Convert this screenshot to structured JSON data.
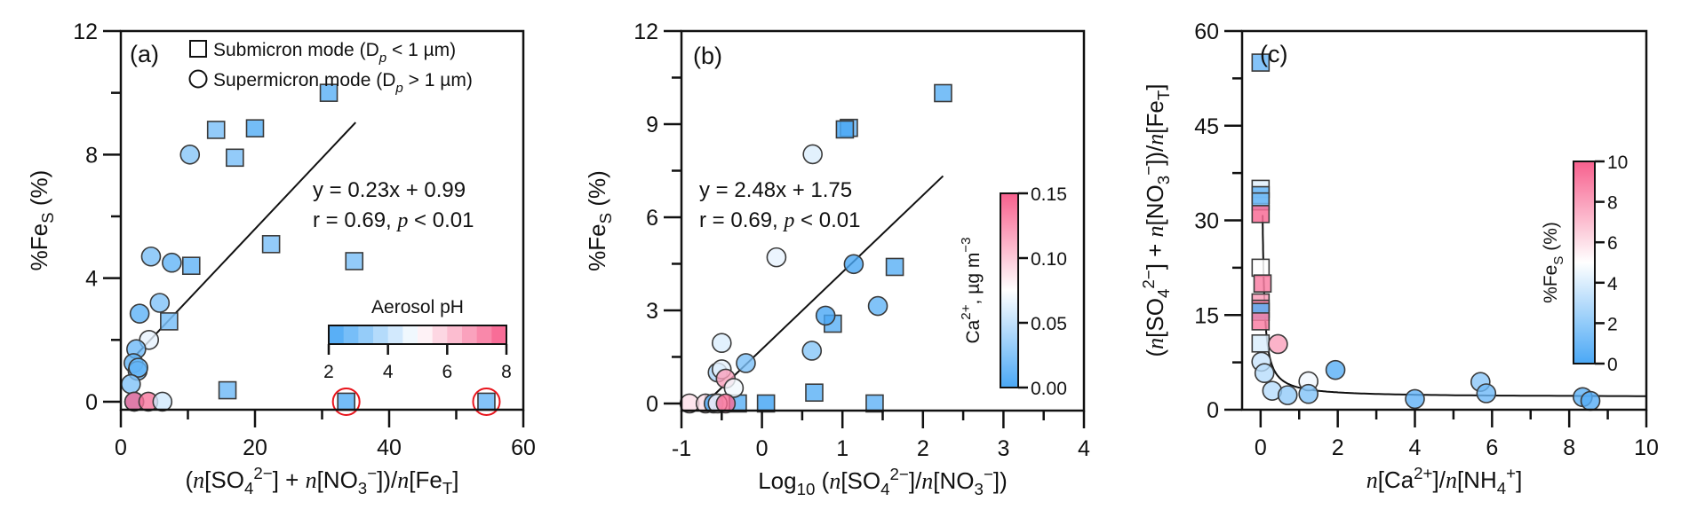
{
  "colors": {
    "low": "#4aa8f5",
    "mid": "#ffffff",
    "high": "#f7608d",
    "highlight": "#e8141c"
  },
  "chart_data": [
    {
      "panel": "(a)",
      "type": "scatter",
      "xlim": [
        0,
        60
      ],
      "ylim": [
        -0.26,
        12
      ],
      "xticks": [
        0,
        20,
        40,
        60
      ],
      "xminor": 10,
      "yticks": [
        0,
        4,
        8,
        12
      ],
      "yminor": 2,
      "xlabel": [
        [
          "(",
          ""
        ],
        [
          "n",
          "i"
        ],
        [
          "[SO",
          ""
        ],
        [
          "4",
          "sub"
        ],
        [
          "2−",
          "sup"
        ],
        [
          "] + ",
          ""
        ],
        [
          "n",
          "i"
        ],
        [
          "[NO",
          ""
        ],
        [
          "3",
          "sub"
        ],
        [
          "−",
          "sup"
        ],
        [
          "])/",
          ""
        ],
        [
          "n",
          "i"
        ],
        [
          "[Fe",
          ""
        ],
        [
          "T",
          "sub"
        ],
        [
          "]",
          ""
        ]
      ],
      "ylabel": [
        [
          "%Fe",
          ""
        ],
        [
          "S",
          "sub"
        ],
        [
          " (%)",
          ""
        ]
      ],
      "legend": [
        {
          "marker": "square",
          "label": [
            [
              "Submicron mode (D",
              ""
            ],
            [
              "p",
              "subi"
            ],
            [
              " < 1 µm)",
              ""
            ]
          ]
        },
        {
          "marker": "circle",
          "label": [
            [
              "Supermicron mode (D",
              ""
            ],
            [
              "p",
              "subi"
            ],
            [
              " > 1 µm)",
              ""
            ]
          ]
        }
      ],
      "fit": {
        "slope": 0.23,
        "intercept": 0.99,
        "xrange": [
          2,
          35
        ]
      },
      "annotations": [
        [
          [
            "y = 0.23x + 0.99",
            ""
          ]
        ],
        [
          [
            "r = 0.69, ",
            ""
          ],
          [
            "p",
            "i"
          ],
          [
            " < 0.01",
            ""
          ]
        ]
      ],
      "colorbar": {
        "title": "Aerosol pH",
        "range": [
          2,
          8
        ],
        "ticks": [
          "2",
          "4",
          "6",
          "8"
        ],
        "tickvals": [
          2,
          4,
          6,
          8
        ],
        "steps": 12,
        "orientation": "horizontal"
      },
      "points": [
        {
          "x": 31,
          "y": 10.0,
          "shape": "square",
          "c": 2.4
        },
        {
          "x": 14.2,
          "y": 8.8,
          "shape": "square",
          "c": 2.9
        },
        {
          "x": 20,
          "y": 8.85,
          "shape": "square",
          "c": 2.3
        },
        {
          "x": 17,
          "y": 7.9,
          "shape": "square",
          "c": 2.9
        },
        {
          "x": 10.3,
          "y": 8.0,
          "shape": "circle",
          "c": 3.0
        },
        {
          "x": 22.4,
          "y": 5.1,
          "shape": "square",
          "c": 2.9
        },
        {
          "x": 34.8,
          "y": 4.55,
          "shape": "square",
          "c": 2.9
        },
        {
          "x": 4.5,
          "y": 4.7,
          "shape": "circle",
          "c": 2.8
        },
        {
          "x": 7.6,
          "y": 4.5,
          "shape": "circle",
          "c": 2.4
        },
        {
          "x": 10.5,
          "y": 4.4,
          "shape": "square",
          "c": 2.5
        },
        {
          "x": 5.8,
          "y": 3.2,
          "shape": "circle",
          "c": 2.9
        },
        {
          "x": 2.8,
          "y": 2.85,
          "shape": "circle",
          "c": 2.3
        },
        {
          "x": 7.2,
          "y": 2.6,
          "shape": "square",
          "c": 2.8
        },
        {
          "x": 4.2,
          "y": 2.0,
          "shape": "circle",
          "c": 4.6
        },
        {
          "x": 2.3,
          "y": 1.7,
          "shape": "circle",
          "c": 2.6
        },
        {
          "x": 1.9,
          "y": 1.25,
          "shape": "circle",
          "c": 2.4
        },
        {
          "x": 2.5,
          "y": 1.0,
          "shape": "circle",
          "c": 2.5
        },
        {
          "x": 2.6,
          "y": 1.1,
          "shape": "circle",
          "c": 2.4
        },
        {
          "x": 1.5,
          "y": 0.57,
          "shape": "circle",
          "c": 2.9
        },
        {
          "x": 2.0,
          "y": 0,
          "shape": "circle",
          "c": 2.2
        },
        {
          "x": 2.0,
          "y": 0,
          "shape": "circle",
          "c": 7.8
        },
        {
          "x": 4.1,
          "y": 0,
          "shape": "circle",
          "c": 7.6
        },
        {
          "x": 6.2,
          "y": 0,
          "shape": "circle",
          "c": 4.2
        },
        {
          "x": 15.9,
          "y": 0.37,
          "shape": "square",
          "c": 2.7
        },
        {
          "x": 33.6,
          "y": 0,
          "shape": "square",
          "c": 2.3,
          "highlight": true
        },
        {
          "x": 54.5,
          "y": 0,
          "shape": "square",
          "c": 2.6,
          "highlight": true
        }
      ]
    },
    {
      "panel": "(b)",
      "type": "scatter",
      "xlim": [
        -1,
        4
      ],
      "ylim": [
        -0.23,
        12
      ],
      "xticks": [
        -1,
        0,
        1,
        2,
        3,
        4
      ],
      "xminor": 0.5,
      "yticks": [
        0,
        3,
        6,
        9,
        12
      ],
      "yminor": 1.5,
      "xlabel": [
        [
          "Log",
          ""
        ],
        [
          "10",
          "sub"
        ],
        [
          " (",
          ""
        ],
        [
          "n",
          "i"
        ],
        [
          "[SO",
          ""
        ],
        [
          "4",
          "sub"
        ],
        [
          "2−",
          "sup"
        ],
        [
          "]/",
          ""
        ],
        [
          "n",
          "i"
        ],
        [
          "[NO",
          ""
        ],
        [
          "3",
          "sub"
        ],
        [
          "−",
          "sup"
        ],
        [
          "])",
          ""
        ]
      ],
      "ylabel": [
        [
          "%Fe",
          ""
        ],
        [
          "S",
          "sub"
        ],
        [
          " (%)",
          ""
        ]
      ],
      "fit": {
        "slope": 2.48,
        "intercept": 1.75,
        "xrange": [
          -0.62,
          2.25
        ]
      },
      "annotations": [
        [
          [
            "y = 2.48x + 1.75",
            ""
          ]
        ],
        [
          [
            "r = 0.69, ",
            ""
          ],
          [
            "p",
            "i"
          ],
          [
            " < 0.01",
            ""
          ]
        ]
      ],
      "colorbar": {
        "title": [
          [
            "Ca",
            ""
          ],
          [
            "2+",
            "sup"
          ],
          [
            ", µg m",
            ""
          ],
          [
            "−3",
            "sup"
          ]
        ],
        "range": [
          0,
          0.15
        ],
        "ticks": [
          "0.00",
          "0.05",
          "0.10",
          "0.15"
        ],
        "tickvals": [
          0,
          0.05,
          0.1,
          0.15
        ],
        "orientation": "vertical"
      },
      "points": [
        {
          "x": 2.25,
          "y": 10.0,
          "shape": "square",
          "c": 0.01
        },
        {
          "x": 1.08,
          "y": 8.88,
          "shape": "square",
          "c": 0.015
        },
        {
          "x": 1.03,
          "y": 8.83,
          "shape": "square",
          "c": 0.0
        },
        {
          "x": 1.65,
          "y": 4.4,
          "shape": "square",
          "c": 0.01
        },
        {
          "x": 0.88,
          "y": 2.57,
          "shape": "square",
          "c": 0.01
        },
        {
          "x": 0.65,
          "y": 0.35,
          "shape": "square",
          "c": 0.01
        },
        {
          "x": 1.4,
          "y": 0,
          "shape": "square",
          "c": 0.012
        },
        {
          "x": 0.05,
          "y": 0,
          "shape": "square",
          "c": 0.0
        },
        {
          "x": -0.3,
          "y": 0,
          "shape": "square",
          "c": 0.01
        },
        {
          "x": -0.6,
          "y": 0,
          "shape": "square",
          "c": 0.0
        },
        {
          "x": 0.63,
          "y": 8.03,
          "shape": "circle",
          "c": 0.06
        },
        {
          "x": 0.18,
          "y": 4.71,
          "shape": "circle",
          "c": 0.065
        },
        {
          "x": 1.14,
          "y": 4.49,
          "shape": "circle",
          "c": 0.0
        },
        {
          "x": 1.44,
          "y": 3.14,
          "shape": "circle",
          "c": 0.01
        },
        {
          "x": 0.79,
          "y": 2.83,
          "shape": "circle",
          "c": 0.0
        },
        {
          "x": 0.62,
          "y": 1.7,
          "shape": "circle",
          "c": 0.025
        },
        {
          "x": -0.5,
          "y": 1.95,
          "shape": "circle",
          "c": 0.06
        },
        {
          "x": -0.2,
          "y": 1.3,
          "shape": "circle",
          "c": 0.02
        },
        {
          "x": -0.55,
          "y": 1.0,
          "shape": "circle",
          "c": 0.04
        },
        {
          "x": -0.5,
          "y": 1.1,
          "shape": "circle",
          "c": 0.065
        },
        {
          "x": -0.45,
          "y": 0.8,
          "shape": "circle",
          "c": 0.12
        },
        {
          "x": -0.35,
          "y": 0.5,
          "shape": "circle",
          "c": 0.07
        },
        {
          "x": -0.9,
          "y": 0,
          "shape": "circle",
          "c": 0.09
        },
        {
          "x": -0.7,
          "y": 0,
          "shape": "circle",
          "c": 0.09
        },
        {
          "x": -0.6,
          "y": 0,
          "shape": "circle",
          "c": 0.0
        },
        {
          "x": -0.55,
          "y": 0,
          "shape": "circle",
          "c": 0.08
        },
        {
          "x": -0.45,
          "y": 0,
          "shape": "circle",
          "c": 0.145
        }
      ]
    },
    {
      "panel": "(c)",
      "type": "scatter",
      "xlim": [
        -0.48,
        10
      ],
      "ylim": [
        0,
        60
      ],
      "xticks": [
        0,
        2,
        4,
        6,
        8,
        10
      ],
      "xminor": 1,
      "yticks": [
        0,
        15,
        30,
        45,
        60
      ],
      "yminor": 7.5,
      "xlabel": [
        [
          "n",
          "i"
        ],
        [
          "[Ca",
          ""
        ],
        [
          "2+",
          "sup"
        ],
        [
          "]/",
          ""
        ],
        [
          "n",
          "i"
        ],
        [
          "[NH",
          ""
        ],
        [
          "4",
          "sub"
        ],
        [
          "+",
          "sup"
        ],
        [
          "]",
          ""
        ]
      ],
      "ylabel": [
        [
          "(",
          ""
        ],
        [
          "n",
          "i"
        ],
        [
          "[SO",
          ""
        ],
        [
          "4",
          "sub"
        ],
        [
          "2−",
          "sup"
        ],
        [
          "] + ",
          ""
        ],
        [
          "n",
          "i"
        ],
        [
          "[NO",
          ""
        ],
        [
          "3",
          "sub"
        ],
        [
          "−",
          "sup"
        ],
        [
          "])/",
          ""
        ],
        [
          "n",
          "i"
        ],
        [
          "[Fe",
          ""
        ],
        [
          "T",
          "sub"
        ],
        [
          "]",
          ""
        ]
      ],
      "fit": {
        "form": "y = a + b/x",
        "a": 2.0,
        "b": 1.5,
        "xrange": [
          0.052,
          10
        ]
      },
      "colorbar": {
        "title": [
          [
            "%Fe",
            ""
          ],
          [
            "S",
            "sub"
          ],
          [
            " (%)",
            ""
          ]
        ],
        "range": [
          0,
          10
        ],
        "ticks": [
          "0",
          "2",
          "4",
          "6",
          "8",
          "10"
        ],
        "tickvals": [
          0,
          2,
          4,
          6,
          8,
          10
        ],
        "orientation": "vertical"
      },
      "points": [
        {
          "x": 0,
          "y": 55,
          "shape": "square",
          "c": 1.0
        },
        {
          "x": 0,
          "y": 35,
          "shape": "square",
          "c": 4.2
        },
        {
          "x": 0,
          "y": 34,
          "shape": "square",
          "c": 0.8
        },
        {
          "x": 0,
          "y": 33,
          "shape": "square",
          "c": 1.2
        },
        {
          "x": 0,
          "y": 31,
          "shape": "square",
          "c": 9.6
        },
        {
          "x": 0,
          "y": 22.5,
          "shape": "square",
          "c": 5.0
        },
        {
          "x": 0.05,
          "y": 20,
          "shape": "square",
          "c": 9.0
        },
        {
          "x": 0,
          "y": 17,
          "shape": "square",
          "c": 8.0
        },
        {
          "x": 0,
          "y": 16,
          "shape": "square",
          "c": 9.0
        },
        {
          "x": 0,
          "y": 15.5,
          "shape": "square",
          "c": 0.5
        },
        {
          "x": 0,
          "y": 14,
          "shape": "square",
          "c": 9.0
        },
        {
          "x": 0,
          "y": 10.5,
          "shape": "square",
          "c": 4.0
        },
        {
          "x": 0.45,
          "y": 10.4,
          "shape": "circle",
          "c": 8.0
        },
        {
          "x": 0.02,
          "y": 7.6,
          "shape": "circle",
          "c": 3.5
        },
        {
          "x": 0.1,
          "y": 5.8,
          "shape": "circle",
          "c": 3.0
        },
        {
          "x": 0.3,
          "y": 3.0,
          "shape": "circle",
          "c": 3.0
        },
        {
          "x": 0.7,
          "y": 2.3,
          "shape": "circle",
          "c": 2.0
        },
        {
          "x": 1.24,
          "y": 4.5,
          "shape": "circle",
          "c": 4.6
        },
        {
          "x": 1.24,
          "y": 2.5,
          "shape": "circle",
          "c": 1.5
        },
        {
          "x": 1.94,
          "y": 6.3,
          "shape": "circle",
          "c": 0.4
        },
        {
          "x": 4.0,
          "y": 1.7,
          "shape": "circle",
          "c": 0.6
        },
        {
          "x": 5.7,
          "y": 4.4,
          "shape": "circle",
          "c": 1.8
        },
        {
          "x": 5.85,
          "y": 2.6,
          "shape": "circle",
          "c": 1.0
        },
        {
          "x": 8.35,
          "y": 2.0,
          "shape": "circle",
          "c": 0.5
        },
        {
          "x": 8.55,
          "y": 1.4,
          "shape": "circle",
          "c": 0.3
        }
      ]
    }
  ]
}
